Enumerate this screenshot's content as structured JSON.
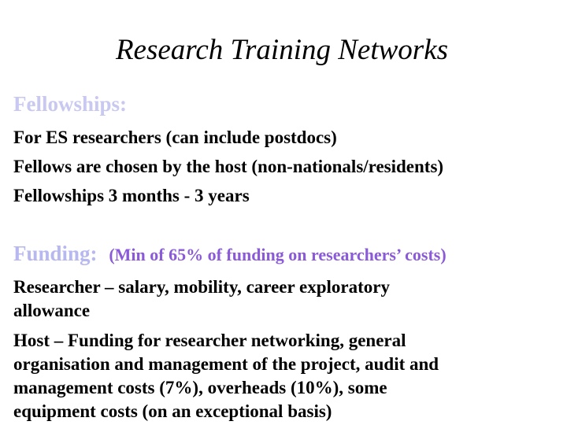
{
  "title": "Research Training Networks",
  "colors": {
    "fellowships_heading": "#c8c8f0",
    "funding_heading": "#b8b8f0",
    "funding_note": "#8a5ad8",
    "body_text": "#000000"
  },
  "fellowships": {
    "heading": "Fellowships:",
    "items": [
      "For ES researchers (can include postdocs)",
      "Fellows are chosen by the host (non-nationals/residents)",
      "Fellowships 3 months -  3 years"
    ]
  },
  "funding": {
    "heading": "Funding:",
    "note": "(Min of 65% of funding on researchers’ costs)",
    "researcher_lines": [
      "Researcher – salary, mobility, career exploratory",
      "allowance"
    ],
    "host_lines": [
      "Host – Funding for researcher networking, general",
      "organisation and management of the project, audit and",
      "management costs (7%), overheads (10%), some",
      "equipment costs (on an exceptional basis)"
    ]
  }
}
